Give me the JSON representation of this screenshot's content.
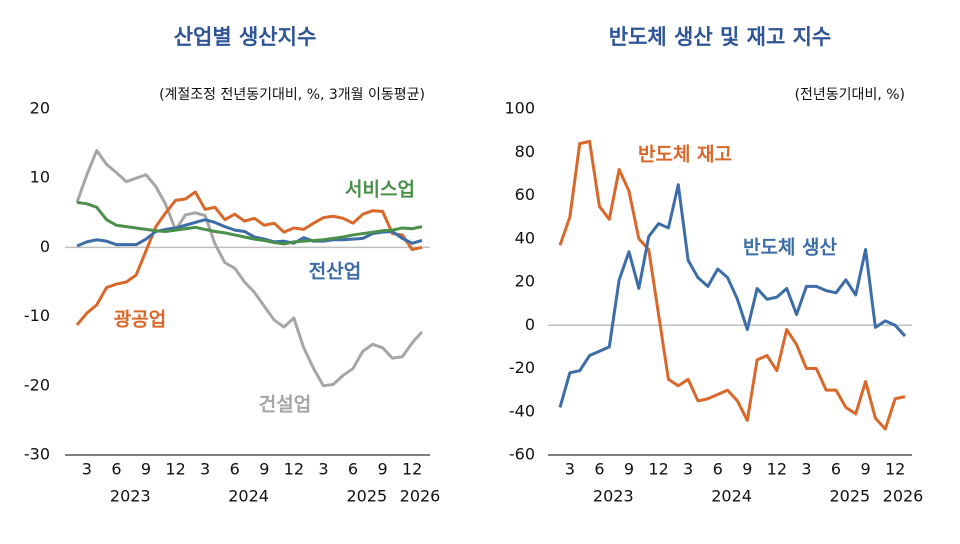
{
  "chart_data": [
    {
      "type": "line",
      "title": "산업별 생산지수",
      "subtitle": "(계절조정 전년동기대비,  %, 3개월 이동평균)",
      "categories": [
        null,
        "3",
        null,
        null,
        "6",
        null,
        null,
        "9",
        null,
        null,
        "12",
        null,
        null,
        "3",
        null,
        null,
        "6",
        null,
        null,
        "9",
        null,
        null,
        "12",
        null,
        null,
        "3",
        null,
        null,
        "6",
        null,
        null,
        "9",
        null,
        null,
        "12",
        null
      ],
      "year_labels": [
        null,
        null,
        null,
        null,
        null,
        "2023",
        null,
        null,
        null,
        null,
        null,
        null,
        null,
        null,
        null,
        null,
        null,
        "2024",
        null,
        null,
        null,
        null,
        null,
        null,
        null,
        null,
        null,
        null,
        null,
        "2025",
        null,
        null,
        null,
        null,
        null,
        "2026"
      ],
      "ylim": [
        -30,
        20
      ],
      "yticks": [
        -30,
        -20,
        -10,
        0,
        10,
        20
      ],
      "series": [
        {
          "name": "건설업",
          "color": "#a6a6a6",
          "values": [
            6.5,
            10.5,
            14,
            12,
            10.8,
            9.5,
            10,
            10.5,
            8.8,
            6.2,
            2.5,
            4.7,
            5.0,
            4.6,
            0.5,
            -2.2,
            -3.0,
            -5.0,
            -6.5,
            -8.5,
            -10.5,
            -11.5,
            -10.2,
            -14.5,
            -17.5,
            -20,
            -19.8,
            -18.5,
            -17.5,
            -15.0,
            -14.0,
            -14.5,
            -16.0,
            -15.8,
            -13.8,
            -12.2
          ]
        },
        {
          "name": "광공업",
          "color": "#d9682a",
          "values": [
            -11.2,
            -9.5,
            -8.3,
            -5.8,
            -5.3,
            -5.0,
            -4.0,
            -0.5,
            3.0,
            5.0,
            6.8,
            7.0,
            8.0,
            5.5,
            5.8,
            4.0,
            4.8,
            3.8,
            4.2,
            3.2,
            3.5,
            2.2,
            2.8,
            2.6,
            3.5,
            4.3,
            4.5,
            4.2,
            3.5,
            4.8,
            5.3,
            5.2,
            2.0,
            1.8,
            -0.3,
            0.0
          ]
        },
        {
          "name": "전산업",
          "color": "#3c6da8",
          "values": [
            0.2,
            0.8,
            1.1,
            0.9,
            0.4,
            0.4,
            0.4,
            1.2,
            2.3,
            2.6,
            2.8,
            3.2,
            3.6,
            4.0,
            3.6,
            3.0,
            2.5,
            2.3,
            1.5,
            1.2,
            0.8,
            0.9,
            0.6,
            1.4,
            0.9,
            0.9,
            1.1,
            1.1,
            1.2,
            1.3,
            2.0,
            2.2,
            2.3,
            1.3,
            0.6,
            1.0
          ]
        },
        {
          "name": "서비스업",
          "color": "#4a8f4a",
          "values": [
            6.5,
            6.3,
            5.8,
            4.0,
            3.2,
            3.0,
            2.8,
            2.6,
            2.4,
            2.3,
            2.5,
            2.7,
            2.9,
            2.6,
            2.3,
            2.1,
            1.8,
            1.5,
            1.2,
            1.0,
            0.7,
            0.5,
            0.8,
            0.9,
            1.0,
            1.1,
            1.3,
            1.5,
            1.8,
            2.0,
            2.2,
            2.4,
            2.5,
            2.8,
            2.7,
            3.0
          ]
        }
      ]
    },
    {
      "type": "line",
      "title": "반도체 생산 및 재고 지수",
      "subtitle": "(전년동기대비,  %)",
      "categories": [
        null,
        "3",
        null,
        null,
        "6",
        null,
        null,
        "9",
        null,
        null,
        "12",
        null,
        null,
        "3",
        null,
        null,
        "6",
        null,
        null,
        "9",
        null,
        null,
        "12",
        null,
        null,
        "3",
        null,
        null,
        "6",
        null,
        null,
        "9",
        null,
        null,
        "12",
        null
      ],
      "year_labels": [
        null,
        null,
        null,
        null,
        null,
        "2023",
        null,
        null,
        null,
        null,
        null,
        null,
        null,
        null,
        null,
        null,
        null,
        "2024",
        null,
        null,
        null,
        null,
        null,
        null,
        null,
        null,
        null,
        null,
        null,
        "2025",
        null,
        null,
        null,
        null,
        null,
        "2026"
      ],
      "ylim": [
        -60,
        100
      ],
      "yticks": [
        -60,
        -40,
        -20,
        0,
        20,
        40,
        60,
        80,
        100
      ],
      "series": [
        {
          "name": "반도체 재고",
          "color": "#d9682a",
          "values": [
            37,
            50,
            84,
            85,
            55,
            49,
            72,
            62,
            40,
            35,
            5,
            -25,
            -28,
            -25,
            -35,
            -34,
            -32,
            -30,
            -35,
            -44,
            -16,
            -14,
            -21,
            -2,
            -9,
            -20,
            -20,
            -30,
            -30,
            -38,
            -41,
            -26,
            -43,
            -48,
            -34,
            -33
          ]
        },
        {
          "name": "반도체 생산",
          "color": "#3c6da8",
          "values": [
            -38,
            -22,
            -21,
            -14,
            -12,
            -10,
            21,
            34,
            17,
            41,
            47,
            45,
            65,
            30,
            22,
            18,
            26,
            22,
            12,
            -2,
            17,
            12,
            13,
            17,
            5,
            18,
            18,
            16,
            15,
            21,
            14,
            35,
            -1,
            2,
            0,
            -5
          ]
        }
      ]
    }
  ]
}
